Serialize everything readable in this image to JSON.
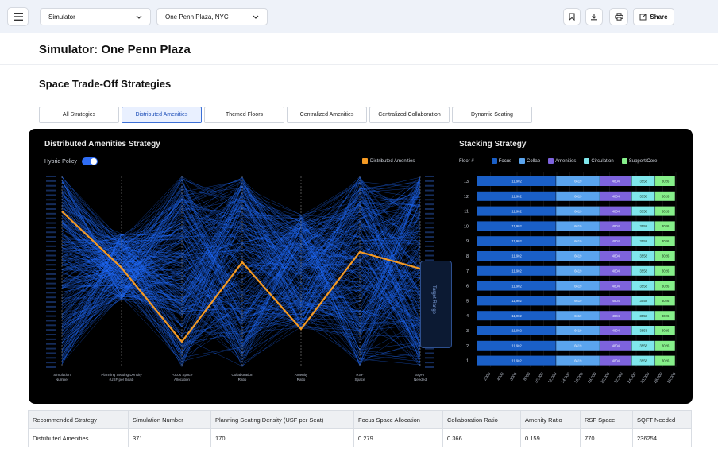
{
  "topbar": {
    "module_select": "Simulator",
    "building_select": "One Penn Plaza, NYC",
    "share_label": "Share",
    "icons": [
      "menu-icon",
      "chevron-down-icon",
      "bookmark-icon",
      "download-icon",
      "print-icon",
      "share-icon"
    ]
  },
  "page": {
    "title": "Simulator: One Penn Plaza",
    "section_title": "Space Trade-Off Strategies"
  },
  "tabs": [
    {
      "label": "All Strategies",
      "active": false
    },
    {
      "label": "Distributed Amenities",
      "active": true
    },
    {
      "label": "Themed Floors",
      "active": false
    },
    {
      "label": "Centralized Amenities",
      "active": false
    },
    {
      "label": "Centralized Collaboration",
      "active": false
    },
    {
      "label": "Dynamic Seating",
      "active": false
    }
  ],
  "parallel_chart": {
    "title": "Distributed Amenities  Strategy",
    "hybrid_label": "Hybrid Policy",
    "hybrid_on": true,
    "legend_label": "Distributed Amenities",
    "highlight_color": "#f59a23",
    "line_color": "#1f6bff",
    "target_range_label": "Target Range",
    "axes": [
      {
        "label": "Simulation Number"
      },
      {
        "label": "Planning Seating Density (USF per Seat)"
      },
      {
        "label": "Focus Space Allocation"
      },
      {
        "label": "Collaboration Ratio"
      },
      {
        "label": "Amenity Ratio"
      },
      {
        "label": "RSF Space"
      },
      {
        "label": "SQFT Needed"
      }
    ]
  },
  "chart_data": {
    "type": "bar",
    "title": "Stacking Strategy",
    "ylabel": "Floor #",
    "categories": [
      "13",
      "12",
      "11",
      "10",
      "9",
      "8",
      "7",
      "6",
      "5",
      "4",
      "3",
      "2",
      "1"
    ],
    "series": [
      {
        "name": "Focus",
        "color": "#1a5fc7",
        "values": [
          11902,
          11902,
          11902,
          11902,
          11902,
          11902,
          11902,
          11902,
          11902,
          11902,
          11902,
          11902,
          11902
        ],
        "label": "11,902"
      },
      {
        "name": "Collab",
        "color": "#5aa4ee",
        "values": [
          6619,
          6619,
          6619,
          6619,
          6619,
          6619,
          6619,
          6619,
          6619,
          6619,
          6619,
          6619,
          6619
        ],
        "label": "6619"
      },
      {
        "name": "Amenities",
        "color": "#7d63dd",
        "values": [
          4804,
          4804,
          4804,
          4804,
          4804,
          4804,
          4804,
          4804,
          4804,
          4804,
          4804,
          4804,
          4804
        ],
        "label": "4804"
      },
      {
        "name": "Circulation",
        "color": "#7fe7ec",
        "values": [
          3558,
          3558,
          3558,
          3558,
          3558,
          3558,
          3558,
          3558,
          3558,
          3558,
          3558,
          3558,
          3558
        ],
        "label": "3558"
      },
      {
        "name": "Support/Core",
        "color": "#86ef8a",
        "values": [
          3026,
          3026,
          3026,
          3026,
          3026,
          3026,
          3026,
          3026,
          3026,
          3026,
          3026,
          3026,
          3026
        ],
        "label": "3026"
      }
    ],
    "xticks": [
      "2000",
      "4000",
      "6000",
      "8000",
      "10,000",
      "12,000",
      "14,000",
      "16,000",
      "18,000",
      "20,000",
      "22,000",
      "24,000",
      "26,000",
      "28,000",
      "30,000"
    ],
    "xlim": [
      0,
      30000
    ]
  },
  "summary_table": {
    "headers": [
      "Recommended Strategy",
      "Simulation Number",
      "Planning Seating Density (USF per Seat)",
      "Focus Space Allocation",
      "Collaboration Ratio",
      "Amenity Ratio",
      "RSF Space",
      "SQFT Needed"
    ],
    "rows": [
      [
        "Distributed Amenities",
        "371",
        "170",
        "0.279",
        "0.366",
        "0.159",
        "770",
        "236254"
      ]
    ]
  }
}
